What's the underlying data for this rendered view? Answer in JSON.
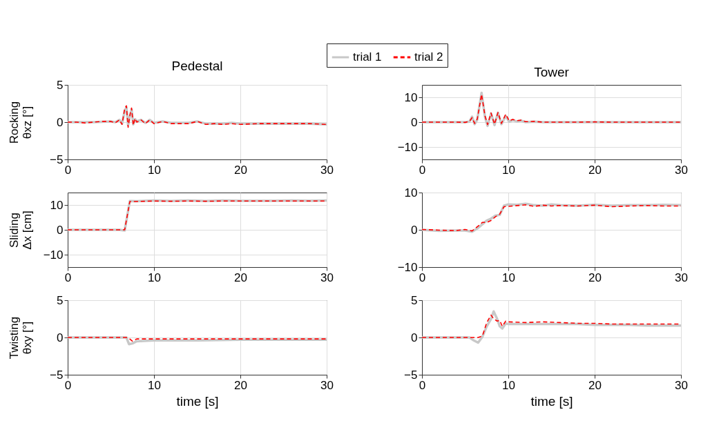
{
  "chart_data": [
    {
      "type": "line",
      "title": "Pedestal",
      "ylabel": "Rocking\nθxz [°]",
      "xlim": [
        0,
        30
      ],
      "xticks": [
        0,
        10,
        20,
        30
      ],
      "ylim": [
        -5,
        5
      ],
      "yticks": [
        -5,
        0,
        5
      ],
      "grid": true,
      "legend": "top",
      "x": [
        0,
        1,
        2,
        3,
        4,
        5,
        5.5,
        6,
        6.3,
        6.6,
        6.8,
        7.0,
        7.2,
        7.4,
        7.6,
        7.8,
        8,
        8.5,
        9,
        9.5,
        10,
        11,
        12,
        13,
        14,
        15,
        16,
        17,
        18,
        19,
        20,
        22,
        24,
        26,
        28,
        30
      ],
      "series": [
        {
          "name": "trial 1",
          "color": "#c8c8c8",
          "line_style": "solid",
          "values": [
            0,
            0,
            0,
            0,
            0.05,
            0.1,
            0,
            0.3,
            -0.2,
            1.5,
            2.0,
            -0.4,
            0.8,
            1.7,
            -0.3,
            0.4,
            0.1,
            0.3,
            -0.1,
            0.3,
            -0.1,
            0.1,
            -0.1,
            -0.1,
            -0.1,
            0.1,
            -0.2,
            -0.2,
            -0.2,
            -0.1,
            -0.2,
            -0.2,
            -0.2,
            -0.2,
            -0.2,
            -0.3
          ]
        },
        {
          "name": "trial 2",
          "color": "#ff0000",
          "line_style": "dashed",
          "values": [
            0,
            0,
            -0.1,
            0,
            0.1,
            0.1,
            -0.1,
            0.3,
            -0.3,
            1.8,
            2.2,
            -0.7,
            0.9,
            1.9,
            -0.4,
            0.5,
            0,
            0.3,
            -0.2,
            0.3,
            -0.2,
            0.1,
            -0.2,
            -0.2,
            -0.2,
            0.1,
            -0.3,
            -0.2,
            -0.3,
            -0.2,
            -0.3,
            -0.2,
            -0.2,
            -0.2,
            -0.2,
            -0.3
          ]
        }
      ]
    },
    {
      "type": "line",
      "title": "Tower",
      "xlim": [
        0,
        30
      ],
      "xticks": [
        0,
        10,
        20,
        30
      ],
      "ylim": [
        -15,
        15
      ],
      "yticks": [
        -10,
        0,
        10
      ],
      "grid": true,
      "x": [
        0,
        2,
        4,
        5,
        5.5,
        5.8,
        6.1,
        6.4,
        6.9,
        7.3,
        7.6,
        8.0,
        8.4,
        8.8,
        9.2,
        9.7,
        10.1,
        10.5,
        11,
        11.5,
        12,
        13,
        14,
        16,
        18,
        20,
        22,
        24,
        26,
        28,
        30
      ],
      "series": [
        {
          "name": "trial 1",
          "color": "#c8c8c8",
          "line_style": "solid",
          "values": [
            0,
            0,
            0,
            0,
            0.2,
            2.2,
            -0.8,
            1,
            11.8,
            2,
            -1.5,
            3.5,
            -1.2,
            3.8,
            -0.8,
            2.5,
            0.2,
            0.8,
            0.3,
            0.6,
            0,
            0.2,
            0,
            0,
            0,
            0,
            0,
            0,
            0,
            0,
            0
          ]
        },
        {
          "name": "trial 2",
          "color": "#ff0000",
          "line_style": "dashed",
          "values": [
            0,
            0,
            0,
            -0.1,
            0.3,
            1.8,
            -0.5,
            1.2,
            11.2,
            2.5,
            -1,
            3.7,
            -0.8,
            3.9,
            -0.5,
            3.2,
            0.5,
            1.1,
            0.6,
            0.8,
            0.2,
            0.3,
            0,
            0,
            0,
            0.1,
            0,
            0,
            0,
            0,
            0
          ]
        }
      ]
    },
    {
      "type": "line",
      "ylabel": "Sliding\nΔx [cm]",
      "xlim": [
        0,
        30
      ],
      "xticks": [
        0,
        10,
        20,
        30
      ],
      "ylim": [
        -15,
        15
      ],
      "yticks": [
        -10,
        0,
        10
      ],
      "grid": true,
      "x": [
        0,
        2,
        4,
        6,
        6.6,
        7.2,
        8,
        10,
        12,
        14,
        16,
        18,
        20,
        22,
        24,
        26,
        28,
        30
      ],
      "series": [
        {
          "name": "trial 1",
          "color": "#c8c8c8",
          "line_style": "solid",
          "values": [
            0,
            0,
            0,
            0,
            -0.3,
            11.6,
            11.5,
            11.8,
            11.6,
            11.8,
            11.6,
            11.8,
            11.7,
            11.7,
            11.7,
            11.8,
            11.7,
            11.8
          ]
        },
        {
          "name": "trial 2",
          "color": "#ff0000",
          "line_style": "dashed",
          "values": [
            0,
            0,
            0,
            0,
            0,
            11.4,
            11.4,
            11.6,
            11.5,
            11.6,
            11.5,
            11.6,
            11.6,
            11.6,
            11.6,
            11.6,
            11.6,
            11.6
          ]
        }
      ]
    },
    {
      "type": "line",
      "xlim": [
        0,
        30
      ],
      "xticks": [
        0,
        10,
        20,
        30
      ],
      "ylim": [
        -10,
        10
      ],
      "yticks": [
        -10,
        0,
        10
      ],
      "grid": true,
      "x": [
        0,
        2,
        4,
        5,
        5.8,
        6.5,
        7,
        7.5,
        8,
        8.5,
        9,
        9.5,
        10,
        11,
        12,
        13,
        14,
        15,
        16,
        18,
        20,
        22,
        24,
        26,
        28,
        30
      ],
      "series": [
        {
          "name": "trial 1",
          "color": "#c8c8c8",
          "line_style": "solid",
          "values": [
            0,
            -0.3,
            -0.2,
            -0.2,
            -0.5,
            0.5,
            1.5,
            2.5,
            3,
            3.8,
            4,
            6.5,
            6.8,
            6.7,
            7,
            6.6,
            6.5,
            6.8,
            6.6,
            6.5,
            6.7,
            6.5,
            6.6,
            6.6,
            6.7,
            6.6
          ]
        },
        {
          "name": "trial 2",
          "color": "#ff0000",
          "line_style": "dashed",
          "values": [
            0.1,
            -0.1,
            -0.2,
            0.1,
            -0.3,
            1,
            2,
            2,
            2.5,
            3.5,
            4.2,
            6.2,
            6.3,
            6.5,
            6.7,
            6.3,
            6.6,
            6.4,
            6.5,
            6.4,
            6.6,
            6.2,
            6.4,
            6.5,
            6.4,
            6.4
          ]
        }
      ]
    },
    {
      "type": "line",
      "ylabel": "Twisting\nθxy [°]",
      "xlabel": "time [s]",
      "xlim": [
        0,
        30
      ],
      "xticks": [
        0,
        10,
        20,
        30
      ],
      "ylim": [
        -5,
        5
      ],
      "yticks": [
        -5,
        0,
        5
      ],
      "grid": true,
      "x": [
        0,
        2,
        4,
        6,
        6.8,
        7.1,
        7.5,
        8,
        10,
        15,
        20,
        25,
        30
      ],
      "series": [
        {
          "name": "trial 1",
          "color": "#c8c8c8",
          "line_style": "solid",
          "values": [
            0,
            0,
            0,
            0,
            0,
            -0.9,
            -0.8,
            -0.5,
            -0.4,
            -0.4,
            -0.3,
            -0.3,
            -0.3
          ]
        },
        {
          "name": "trial 2",
          "color": "#ff0000",
          "line_style": "dashed",
          "values": [
            0,
            0,
            0,
            0,
            0,
            -0.1,
            -0.5,
            -0.2,
            -0.2,
            -0.2,
            -0.2,
            -0.2,
            -0.2
          ]
        }
      ]
    },
    {
      "type": "line",
      "xlabel": "time [s]",
      "xlim": [
        0,
        30
      ],
      "xticks": [
        0,
        10,
        20,
        30
      ],
      "ylim": [
        -5,
        5
      ],
      "yticks": [
        -5,
        0,
        5
      ],
      "grid": true,
      "x": [
        0,
        2,
        4,
        5.5,
        6,
        6.5,
        7,
        7.5,
        8,
        8.3,
        8.7,
        9,
        9.3,
        9.7,
        10,
        12,
        14,
        16,
        18,
        20,
        22,
        24,
        26,
        28,
        30
      ],
      "series": [
        {
          "name": "trial 1",
          "color": "#c8c8c8",
          "line_style": "solid",
          "values": [
            0,
            0,
            0,
            0,
            -0.4,
            -0.7,
            0.1,
            1.5,
            2.5,
            3.5,
            2.5,
            1.5,
            1.2,
            1.9,
            1.8,
            1.8,
            1.8,
            1.8,
            1.8,
            1.7,
            1.7,
            1.7,
            1.6,
            1.6,
            1.6
          ]
        },
        {
          "name": "trial 2",
          "color": "#ff0000",
          "line_style": "dashed",
          "values": [
            0,
            0,
            0,
            0,
            0,
            0,
            0.2,
            2,
            3,
            2.5,
            2.2,
            2.3,
            1.5,
            2.2,
            2.1,
            2.0,
            2.1,
            2.0,
            1.9,
            1.9,
            1.8,
            1.8,
            1.8,
            1.8,
            1.8
          ]
        }
      ]
    }
  ]
}
